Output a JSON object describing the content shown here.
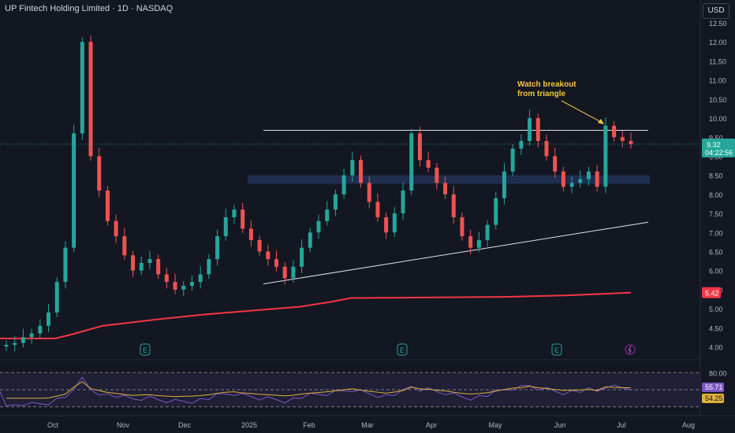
{
  "header": {
    "title": "UP Fintech Holding Limited · 1D · NASDAQ",
    "currency_button": "USD"
  },
  "colors": {
    "background": "#131722",
    "up": "#26a69a",
    "down": "#ef5350",
    "ma_line": "#f23645",
    "rsi_line": "#7e57c2",
    "rsi_ma": "#e0b13a",
    "zone": "#2a3f75",
    "annotation": "#f5c542"
  },
  "annotation": {
    "text_line1": "Watch breakout",
    "text_line2": "from triangle"
  },
  "price_badges": {
    "last_price": "9.32",
    "countdown": "04:22:56",
    "ma_value": "5.42",
    "rsi_value": "55.71",
    "rsi_ma_value": "54.25"
  },
  "events": [
    "E",
    "E",
    "E"
  ],
  "event_flash_icon": "lightning-icon",
  "chart_data": {
    "type": "candlestick",
    "y_axis_ticks": [
      "12.50",
      "12.00",
      "11.50",
      "11.00",
      "10.50",
      "10.00",
      "9.50",
      "9.00",
      "8.50",
      "8.00",
      "7.50",
      "7.00",
      "6.50",
      "6.00",
      "5.50",
      "5.00",
      "4.50",
      "4.00"
    ],
    "ylim": [
      3.7,
      13.1
    ],
    "x_axis_labels": [
      "Oct",
      "Nov",
      "Dec",
      "2025",
      "Feb",
      "Mar",
      "Apr",
      "May",
      "Jun",
      "Jul",
      "Aug"
    ],
    "resistance_level": 9.68,
    "demand_zone": [
      8.28,
      8.5
    ],
    "ascending_trendline": {
      "from": [
        "2025",
        5.65
      ],
      "to": [
        "Jul",
        7.27
      ]
    },
    "moving_average": [
      [
        4.22,
        4.22
      ],
      [
        4.22,
        4.23
      ],
      [
        4.3,
        4.35
      ],
      [
        4.6,
        4.7
      ],
      [
        4.8,
        4.87
      ],
      [
        4.95,
        5.1
      ],
      [
        5.28,
        5.3
      ],
      [
        5.35,
        5.42
      ]
    ],
    "candles_close": [
      4.05,
      4.1,
      4.25,
      4.35,
      4.55,
      4.9,
      5.7,
      6.6,
      9.6,
      12.0,
      9.0,
      8.1,
      7.3,
      6.9,
      6.4,
      6.0,
      6.2,
      6.3,
      5.9,
      5.7,
      5.5,
      5.6,
      5.7,
      5.9,
      6.3,
      6.9,
      7.4,
      7.6,
      7.1,
      6.8,
      6.5,
      6.3,
      6.1,
      5.8,
      6.1,
      6.6,
      7.0,
      7.3,
      7.6,
      8.0,
      8.5,
      8.9,
      8.3,
      7.8,
      7.4,
      7.0,
      7.5,
      8.1,
      9.6,
      8.9,
      8.7,
      8.3,
      8.0,
      7.4,
      6.9,
      6.6,
      6.8,
      7.2,
      7.9,
      8.6,
      9.2,
      9.4,
      10.0,
      9.4,
      9.0,
      8.6,
      8.2,
      8.3,
      8.4,
      8.6,
      8.2,
      9.8,
      9.5,
      9.4,
      9.32
    ],
    "rsi": {
      "levels": [
        "80.00",
        "50.00",
        "20.00"
      ],
      "ylim": [
        10,
        90
      ]
    }
  }
}
